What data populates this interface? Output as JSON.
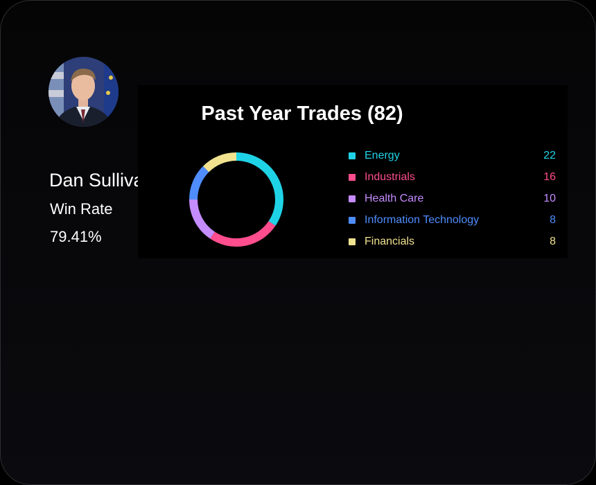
{
  "profile": {
    "name": "Dan Sullivan",
    "win_rate_label": "Win Rate",
    "win_rate_value": "79.41%",
    "avatar_icon": "politician-portrait"
  },
  "trades": {
    "title": "Past Year Trades (82)"
  },
  "chart_data": {
    "type": "pie",
    "title": "Past Year Trades (82)",
    "categories": [
      "Energy",
      "Industrials",
      "Health Care",
      "Information Technology",
      "Financials"
    ],
    "values": [
      22,
      16,
      10,
      8,
      8
    ],
    "colors": [
      "#1fd3e6",
      "#ff4d8d",
      "#c58cff",
      "#4f8dff",
      "#f1e28f"
    ],
    "legend": "right"
  }
}
